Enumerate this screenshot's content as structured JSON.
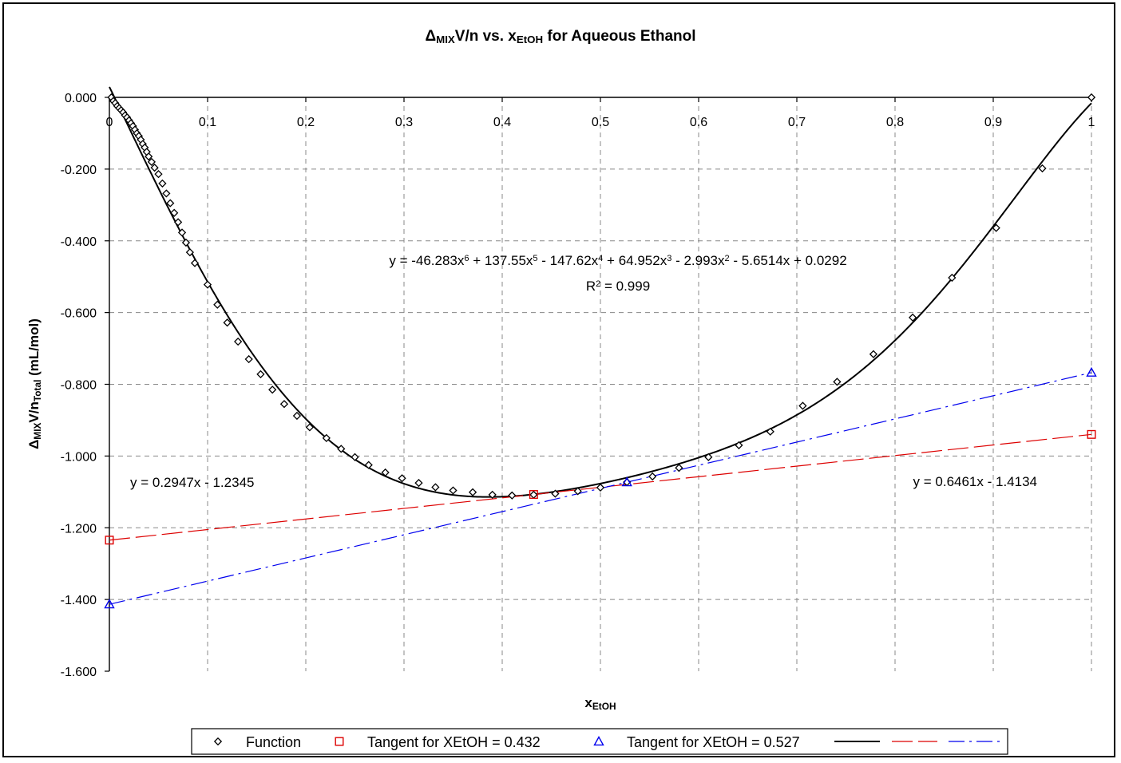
{
  "chart_data": {
    "type": "scatter",
    "title": {
      "main": "Δ",
      "sub1": "MIX",
      "mid": "V/n vs. x",
      "sub2": "EtOH",
      "tail": " for Aqueous Ethanol"
    },
    "xlabel": {
      "main": "x",
      "sub": "EtOH"
    },
    "ylabel": {
      "main": "Δ",
      "sub1": "MIX",
      "mid": "V/n",
      "sub2": "Total",
      "tail": " (mL/mol)"
    },
    "xlim": [
      0,
      1
    ],
    "ylim": [
      -1.6,
      0
    ],
    "x_ticks": [
      "0",
      "0.1",
      "0.2",
      "0.3",
      "0.4",
      "0.5",
      "0.6",
      "0.7",
      "0.8",
      "0.9",
      "1"
    ],
    "y_ticks": [
      "0.000",
      "-0.200",
      "-0.400",
      "-0.600",
      "-0.800",
      "-1.000",
      "-1.200",
      "-1.400",
      "-1.600"
    ],
    "grid": true,
    "legend_position": "bottom",
    "legend": [
      {
        "label": "Function",
        "marker": "diamond",
        "color": "#000000"
      },
      {
        "label": "Tangent for XEtOH = 0.432",
        "marker": "square",
        "color": "#dd0000"
      },
      {
        "label": "Tangent for XEtOH = 0.527",
        "marker": "triangle",
        "color": "#0000ee"
      }
    ],
    "series": [
      {
        "name": "Function",
        "marker": "diamond",
        "color": "#000000",
        "x": [
          0.002,
          0.004,
          0.006,
          0.008,
          0.01,
          0.012,
          0.014,
          0.016,
          0.018,
          0.02,
          0.022,
          0.024,
          0.026,
          0.028,
          0.03,
          0.032,
          0.034,
          0.036,
          0.038,
          0.04,
          0.043,
          0.046,
          0.05,
          0.054,
          0.058,
          0.062,
          0.066,
          0.07,
          0.074,
          0.078,
          0.082,
          0.087,
          0.1,
          0.11,
          0.12,
          0.131,
          0.142,
          0.154,
          0.166,
          0.178,
          0.191,
          0.204,
          0.221,
          0.236,
          0.25,
          0.264,
          0.281,
          0.298,
          0.315,
          0.332,
          0.35,
          0.37,
          0.39,
          0.41,
          0.432,
          0.454,
          0.477,
          0.5,
          0.527,
          0.553,
          0.58,
          0.61,
          0.641,
          0.673,
          0.706,
          0.741,
          0.778,
          0.818,
          0.858,
          0.903,
          0.95,
          1.0
        ],
        "y": [
          0.0,
          -0.01,
          -0.016,
          -0.024,
          -0.03,
          -0.036,
          -0.042,
          -0.05,
          -0.056,
          -0.064,
          -0.072,
          -0.08,
          -0.09,
          -0.1,
          -0.108,
          -0.118,
          -0.13,
          -0.14,
          -0.152,
          -0.165,
          -0.18,
          -0.196,
          -0.214,
          -0.24,
          -0.268,
          -0.295,
          -0.322,
          -0.348,
          -0.377,
          -0.405,
          -0.432,
          -0.462,
          -0.522,
          -0.578,
          -0.628,
          -0.681,
          -0.73,
          -0.772,
          -0.815,
          -0.855,
          -0.888,
          -0.92,
          -0.95,
          -0.98,
          -1.003,
          -1.025,
          -1.046,
          -1.062,
          -1.075,
          -1.087,
          -1.096,
          -1.101,
          -1.108,
          -1.11,
          -1.108,
          -1.105,
          -1.098,
          -1.088,
          -1.073,
          -1.057,
          -1.033,
          -1.003,
          -0.97,
          -0.932,
          -0.86,
          -0.793,
          -0.716,
          -0.614,
          -0.503,
          -0.364,
          -0.198,
          0.0
        ]
      },
      {
        "name": "Tangent for XEtOH = 0.432",
        "marker": "square",
        "color": "#dd0000",
        "x": [
          0,
          0.432,
          1
        ],
        "y": [
          -1.2345,
          -1.1072,
          -0.9398
        ]
      },
      {
        "name": "Tangent for XEtOH = 0.527",
        "marker": "triangle",
        "color": "#0000ee",
        "x": [
          0,
          0.527,
          1
        ],
        "y": [
          -1.4134,
          -1.0729,
          -0.7673
        ]
      }
    ],
    "trendlines": [
      {
        "name": "poly6",
        "color": "#000000",
        "dash": "solid",
        "coefficients": [
          -46.283,
          137.55,
          -147.62,
          64.952,
          -2.993,
          -5.6514,
          0.0292
        ]
      },
      {
        "name": "tangent-0.432",
        "color": "#dd0000",
        "dash": "long-dash",
        "slope": 0.2947,
        "intercept": -1.2345
      },
      {
        "name": "tangent-0.527",
        "color": "#0000ee",
        "dash": "dash-dot",
        "slope": 0.6461,
        "intercept": -1.4134
      }
    ],
    "annotations": {
      "poly_equation": {
        "parts": [
          "y = -46.283x",
          "6",
          " + 137.55x",
          "5",
          " - 147.62x",
          "4",
          " + 64.952x",
          "3",
          " - 2.993x",
          "2",
          " - 5.6514x + 0.0292"
        ]
      },
      "r_squared": {
        "parts": [
          "R",
          "2",
          " = 0.999"
        ]
      },
      "tangent1_equation": "y = 0.2947x - 1.2345",
      "tangent2_equation": "y = 0.6461x - 1.4134"
    }
  }
}
